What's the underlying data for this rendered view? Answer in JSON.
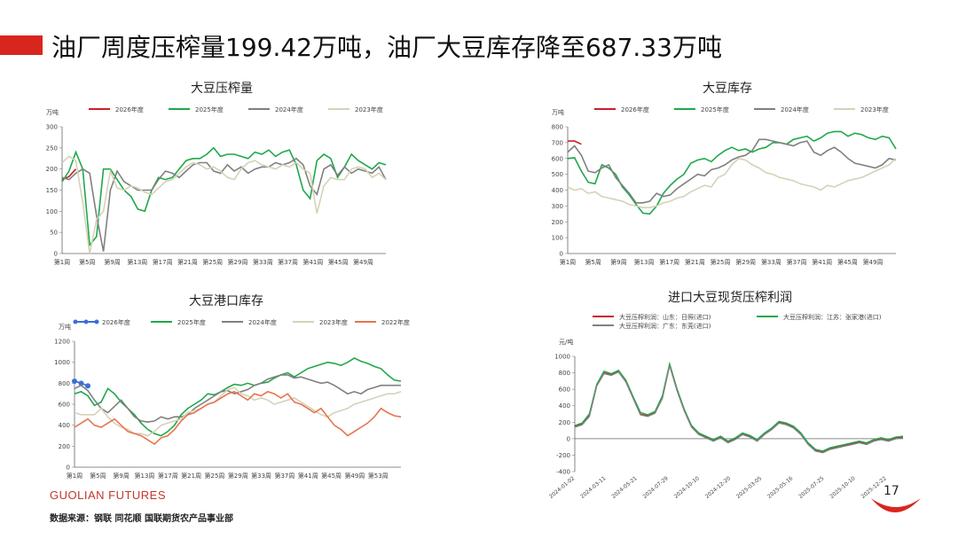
{
  "slide": {
    "headline": "油厂周度压榨量199.42万吨，油厂大豆库存降至687.33万吨",
    "brand": "GUOLIAN FUTURES",
    "source": "数据来源：钢联  同花顺  国联期货农产品事业部",
    "page_number": "17",
    "accent_color": "#d8261f"
  },
  "chart_data": [
    {
      "type": "line",
      "title": "大豆压榨量",
      "ylabel": "万吨",
      "ylim": [
        0,
        300
      ],
      "yticks": [
        "0",
        "50",
        "100",
        "150",
        "200",
        "250",
        "300"
      ],
      "xticks": [
        "第1周",
        "第5周",
        "第9周",
        "第13周",
        "第17周",
        "第21周",
        "第25周",
        "第29周",
        "第33周",
        "第37周",
        "第41周",
        "第45周",
        "第49周"
      ],
      "legend_placement": "top",
      "series": [
        {
          "name": "2026年度",
          "color": "#c8202a",
          "values": [
            175,
            182,
            200
          ]
        },
        {
          "name": "2025年度",
          "color": "#1fa84a",
          "values": [
            170,
            195,
            240,
            200,
            20,
            40,
            200,
            200,
            175,
            150,
            135,
            105,
            100,
            150,
            180,
            175,
            180,
            200,
            220,
            225,
            225,
            235,
            250,
            230,
            235,
            235,
            230,
            225,
            240,
            235,
            245,
            230,
            240,
            245,
            210,
            150,
            130,
            220,
            235,
            225,
            180,
            205,
            235,
            220,
            210,
            200,
            215,
            210
          ]
        },
        {
          "name": "2024年度",
          "color": "#808080",
          "values": [
            180,
            175,
            190,
            200,
            190,
            90,
            5,
            150,
            195,
            170,
            160,
            150,
            150,
            150,
            175,
            195,
            190,
            180,
            195,
            210,
            215,
            215,
            195,
            190,
            210,
            195,
            205,
            190,
            200,
            205,
            205,
            215,
            210,
            215,
            225,
            210,
            160,
            140,
            200,
            210,
            185,
            205,
            190,
            200,
            195,
            190,
            205,
            175
          ]
        },
        {
          "name": "2023年度",
          "color": "#d5d2b8",
          "values": [
            215,
            230,
            220,
            120,
            0,
            80,
            100,
            195,
            155,
            150,
            160,
            155,
            145,
            140,
            155,
            170,
            175,
            190,
            205,
            215,
            210,
            200,
            205,
            195,
            180,
            175,
            200,
            215,
            220,
            210,
            205,
            200,
            210,
            205,
            215,
            200,
            190,
            95,
            160,
            180,
            175,
            175,
            200,
            205,
            200,
            180,
            190,
            175
          ]
        }
      ]
    },
    {
      "type": "line",
      "title": "大豆库存",
      "ylabel": "万吨",
      "ylim": [
        0,
        800
      ],
      "yticks": [
        "0",
        "100",
        "200",
        "300",
        "400",
        "500",
        "600",
        "700",
        "800"
      ],
      "xticks": [
        "第1周",
        "第5周",
        "第9周",
        "第13周",
        "第17周",
        "第21周",
        "第25周",
        "第29周",
        "第33周",
        "第37周",
        "第41周",
        "第45周",
        "第49周"
      ],
      "legend_placement": "top",
      "series": [
        {
          "name": "2026年度",
          "color": "#c8202a",
          "values": [
            710,
            710,
            690
          ]
        },
        {
          "name": "2025年度",
          "color": "#1fa84a",
          "values": [
            600,
            605,
            520,
            450,
            440,
            560,
            540,
            500,
            420,
            370,
            310,
            255,
            250,
            300,
            380,
            430,
            470,
            500,
            570,
            590,
            600,
            580,
            620,
            650,
            670,
            650,
            660,
            640,
            660,
            670,
            700,
            700,
            690,
            720,
            730,
            740,
            710,
            730,
            760,
            770,
            770,
            740,
            760,
            750,
            730,
            720,
            740,
            730,
            660
          ]
        },
        {
          "name": "2024年度",
          "color": "#808080",
          "values": [
            640,
            680,
            620,
            520,
            510,
            540,
            560,
            480,
            430,
            380,
            320,
            320,
            330,
            380,
            360,
            370,
            410,
            440,
            470,
            500,
            490,
            530,
            540,
            560,
            590,
            610,
            620,
            650,
            720,
            720,
            710,
            700,
            690,
            680,
            700,
            710,
            640,
            620,
            650,
            670,
            640,
            600,
            570,
            560,
            550,
            540,
            560,
            600,
            590
          ]
        },
        {
          "name": "2023年度",
          "color": "#d5d2b8",
          "values": [
            420,
            400,
            410,
            380,
            390,
            360,
            350,
            340,
            330,
            310,
            300,
            290,
            290,
            300,
            320,
            330,
            350,
            360,
            390,
            410,
            430,
            420,
            480,
            500,
            560,
            600,
            590,
            560,
            540,
            510,
            500,
            480,
            470,
            460,
            440,
            430,
            420,
            400,
            430,
            420,
            440,
            460,
            470,
            480,
            500,
            520,
            540,
            560,
            600
          ]
        }
      ]
    },
    {
      "type": "line",
      "title": "大豆港口库存",
      "ylabel": "万吨",
      "ylim": [
        0,
        1200
      ],
      "yticks": [
        "0",
        "200",
        "400",
        "600",
        "800",
        "1000",
        "1200"
      ],
      "xticks": [
        "第1周",
        "第5周",
        "第9周",
        "第13周",
        "第17周",
        "第21周",
        "第25周",
        "第29周",
        "第33周",
        "第37周",
        "第41周",
        "第45周",
        "第49周",
        "第53周"
      ],
      "legend_placement": "top",
      "series": [
        {
          "name": "2026年度",
          "color": "#3a6fd8",
          "values": [
            820,
            800,
            775
          ]
        },
        {
          "name": "2025年度",
          "color": "#1fa84a",
          "values": [
            700,
            720,
            680,
            590,
            620,
            750,
            700,
            620,
            560,
            500,
            420,
            360,
            320,
            300,
            340,
            400,
            500,
            560,
            600,
            640,
            700,
            690,
            720,
            760,
            790,
            780,
            800,
            780,
            800,
            810,
            850,
            880,
            900,
            860,
            900,
            940,
            960,
            980,
            1000,
            990,
            970,
            1000,
            1040,
            1010,
            990,
            960,
            940,
            880,
            830,
            820
          ]
        },
        {
          "name": "2024年度",
          "color": "#808080",
          "values": [
            750,
            780,
            730,
            640,
            560,
            520,
            580,
            640,
            560,
            480,
            440,
            430,
            440,
            480,
            460,
            480,
            480,
            500,
            560,
            600,
            640,
            680,
            720,
            730,
            700,
            720,
            740,
            780,
            800,
            840,
            860,
            880,
            880,
            850,
            860,
            840,
            820,
            800,
            810,
            780,
            740,
            700,
            720,
            700,
            740,
            760,
            780,
            780,
            780,
            780
          ]
        },
        {
          "name": "2023年度",
          "color": "#d5d2b8",
          "values": [
            520,
            500,
            500,
            500,
            560,
            480,
            420,
            380,
            360,
            320,
            320,
            300,
            340,
            400,
            420,
            440,
            460,
            520,
            540,
            560,
            600,
            620,
            680,
            740,
            760,
            700,
            680,
            640,
            660,
            640,
            600,
            620,
            640,
            660,
            620,
            580,
            540,
            500,
            480,
            520,
            540,
            560,
            600,
            620,
            640,
            660,
            680,
            700,
            700,
            720
          ]
        },
        {
          "name": "2022年度",
          "color": "#e8734f",
          "values": [
            380,
            420,
            460,
            400,
            380,
            420,
            460,
            400,
            340,
            320,
            300,
            260,
            220,
            280,
            300,
            360,
            440,
            500,
            520,
            560,
            600,
            620,
            660,
            700,
            720,
            680,
            640,
            700,
            680,
            720,
            700,
            660,
            700,
            620,
            600,
            560,
            520,
            560,
            480,
            400,
            360,
            300,
            340,
            380,
            420,
            480,
            560,
            520,
            490,
            480
          ]
        }
      ]
    },
    {
      "type": "line",
      "title": "进口大豆现货压榨利润",
      "ylabel": "元/吨",
      "ylim": [
        -400,
        1000
      ],
      "yticks": [
        "-400",
        "-200",
        "0",
        "200",
        "400",
        "600",
        "800",
        "1000"
      ],
      "xticks": [
        "2024-01-02",
        "2024-03-11",
        "2024-05-21",
        "2024-07-29",
        "2024-10-10",
        "2024-12-20",
        "2025-03-05",
        "2025-05-16",
        "2025-07-25",
        "2025-10-10",
        "2025-12-22"
      ],
      "legend_placement": "top",
      "series": [
        {
          "name": "大豆压榨利润：山东：日照(进口)",
          "color": "#c8202a",
          "values": [
            150,
            180,
            280,
            650,
            800,
            780,
            820,
            700,
            500,
            300,
            280,
            320,
            500,
            900,
            600,
            350,
            150,
            60,
            20,
            -20,
            20,
            -40,
            0,
            60,
            30,
            -20,
            60,
            120,
            200,
            180,
            140,
            60,
            -60,
            -140,
            -160,
            -120,
            -100,
            -80,
            -60,
            -40,
            -60,
            -20,
            0,
            -20,
            10,
            20
          ]
        },
        {
          "name": "大豆压榨利润：江苏：张家港(进口)",
          "color": "#1fa84a",
          "values": [
            160,
            190,
            300,
            660,
            820,
            790,
            830,
            710,
            510,
            320,
            290,
            330,
            520,
            910,
            610,
            360,
            160,
            70,
            30,
            -10,
            30,
            -30,
            10,
            70,
            40,
            -10,
            70,
            130,
            210,
            190,
            150,
            70,
            -50,
            -130,
            -150,
            -110,
            -90,
            -70,
            -50,
            -30,
            -50,
            -10,
            10,
            -10,
            20,
            30
          ]
        },
        {
          "name": "大豆压榨利润：广东：东莞(进口)",
          "color": "#808080",
          "values": [
            140,
            170,
            270,
            640,
            790,
            770,
            810,
            690,
            490,
            290,
            270,
            310,
            490,
            890,
            590,
            340,
            140,
            50,
            10,
            -30,
            10,
            -50,
            -10,
            50,
            20,
            -30,
            50,
            110,
            190,
            170,
            130,
            50,
            -70,
            -150,
            -170,
            -130,
            -110,
            -90,
            -70,
            -50,
            -70,
            -30,
            -10,
            -30,
            0,
            10
          ]
        }
      ]
    }
  ]
}
